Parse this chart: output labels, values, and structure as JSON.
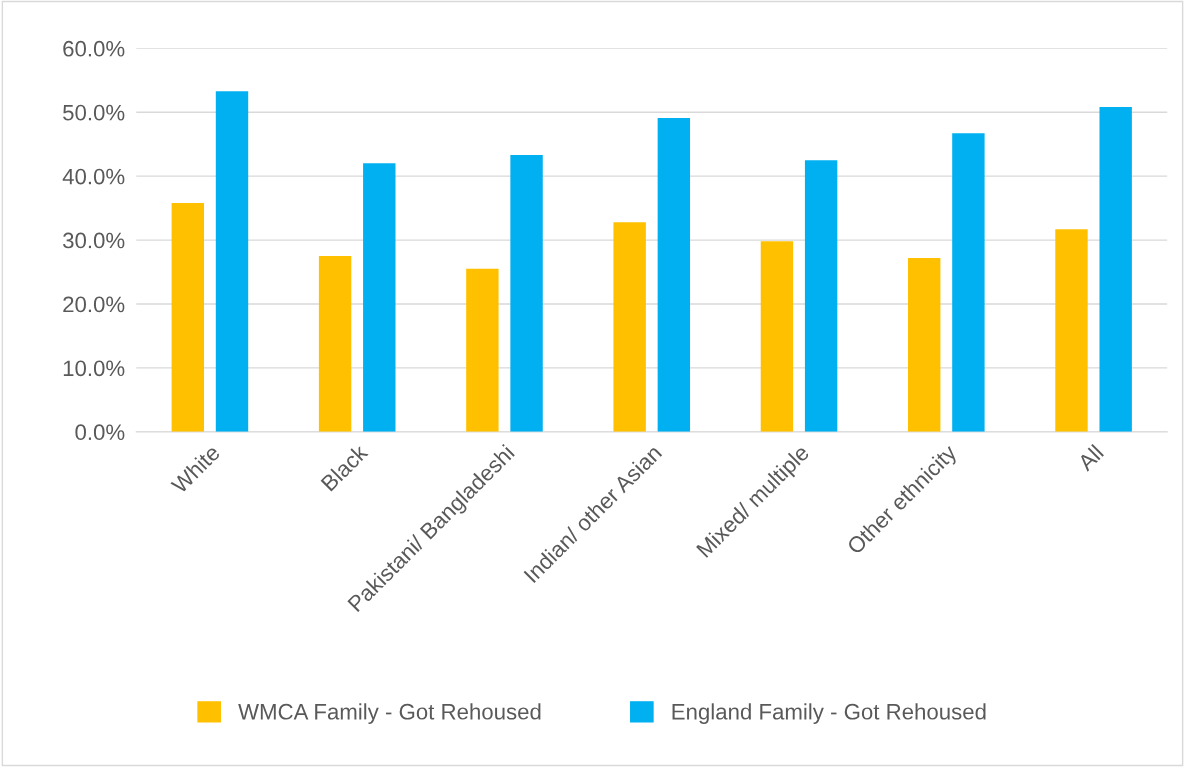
{
  "chart_data": {
    "type": "bar",
    "categories": [
      "White",
      "Black",
      "Pakistani/ Bangladeshi",
      "Indian/ other Asian",
      "Mixed/ multiple",
      "Other ethnicity",
      "All"
    ],
    "series": [
      {
        "name": "WMCA Family - Got Rehoused",
        "color": "#ffc000",
        "values": [
          35.8,
          27.5,
          25.5,
          32.8,
          29.8,
          27.2,
          31.7
        ]
      },
      {
        "name": "England Family - Got Rehoused",
        "color": "#00b0f0",
        "values": [
          53.3,
          42.0,
          43.3,
          49.1,
          42.5,
          46.7,
          50.8
        ]
      }
    ],
    "ylim": [
      0,
      60
    ],
    "yticks": [
      {
        "value": 0,
        "label": "0.0%"
      },
      {
        "value": 10,
        "label": "10.0%"
      },
      {
        "value": 20,
        "label": "20.0%"
      },
      {
        "value": 30,
        "label": "30.0%"
      },
      {
        "value": 40,
        "label": "40.0%"
      },
      {
        "value": 50,
        "label": "50.0%"
      },
      {
        "value": 60,
        "label": "60.0%"
      }
    ],
    "grid": "y",
    "legend": "bottom"
  }
}
